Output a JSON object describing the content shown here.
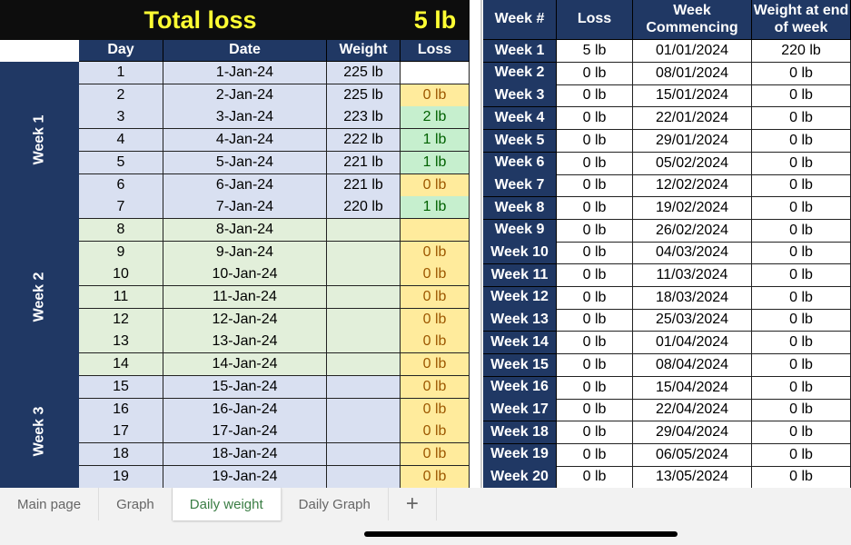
{
  "summary": {
    "title": "Total loss",
    "total": "5 lb"
  },
  "daily": {
    "headers": [
      "Day",
      "Date",
      "Weight",
      "Loss"
    ],
    "weeks": [
      "Week 1",
      "Week 2",
      "Week 3"
    ],
    "rows": [
      {
        "day": "1",
        "date": "1-Jan-24",
        "weight": "225 lb",
        "loss": "",
        "status": "none"
      },
      {
        "day": "2",
        "date": "2-Jan-24",
        "weight": "225 lb",
        "loss": "0 lb",
        "status": "neutral"
      },
      {
        "day": "3",
        "date": "3-Jan-24",
        "weight": "223 lb",
        "loss": "2 lb",
        "status": "good"
      },
      {
        "day": "4",
        "date": "4-Jan-24",
        "weight": "222 lb",
        "loss": "1 lb",
        "status": "good"
      },
      {
        "day": "5",
        "date": "5-Jan-24",
        "weight": "221 lb",
        "loss": "1 lb",
        "status": "good"
      },
      {
        "day": "6",
        "date": "6-Jan-24",
        "weight": "221 lb",
        "loss": "0 lb",
        "status": "neutral"
      },
      {
        "day": "7",
        "date": "7-Jan-24",
        "weight": "220 lb",
        "loss": "1 lb",
        "status": "good"
      },
      {
        "day": "8",
        "date": "8-Jan-24",
        "weight": "",
        "loss": "",
        "status": "neutral"
      },
      {
        "day": "9",
        "date": "9-Jan-24",
        "weight": "",
        "loss": "0 lb",
        "status": "neutral"
      },
      {
        "day": "10",
        "date": "10-Jan-24",
        "weight": "",
        "loss": "0 lb",
        "status": "neutral"
      },
      {
        "day": "11",
        "date": "11-Jan-24",
        "weight": "",
        "loss": "0 lb",
        "status": "neutral"
      },
      {
        "day": "12",
        "date": "12-Jan-24",
        "weight": "",
        "loss": "0 lb",
        "status": "neutral"
      },
      {
        "day": "13",
        "date": "13-Jan-24",
        "weight": "",
        "loss": "0 lb",
        "status": "neutral"
      },
      {
        "day": "14",
        "date": "14-Jan-24",
        "weight": "",
        "loss": "0 lb",
        "status": "neutral"
      },
      {
        "day": "15",
        "date": "15-Jan-24",
        "weight": "",
        "loss": "0 lb",
        "status": "neutral"
      },
      {
        "day": "16",
        "date": "16-Jan-24",
        "weight": "",
        "loss": "0 lb",
        "status": "neutral"
      },
      {
        "day": "17",
        "date": "17-Jan-24",
        "weight": "",
        "loss": "0 lb",
        "status": "neutral"
      },
      {
        "day": "18",
        "date": "18-Jan-24",
        "weight": "",
        "loss": "0 lb",
        "status": "neutral"
      },
      {
        "day": "19",
        "date": "19-Jan-24",
        "weight": "",
        "loss": "0 lb",
        "status": "neutral"
      }
    ]
  },
  "weekly": {
    "headers": [
      "Week #",
      "Loss",
      "Week Commencing",
      "Weight at end of week"
    ],
    "rows": [
      [
        "Week 1",
        "5 lb",
        "01/01/2024",
        "220 lb"
      ],
      [
        "Week 2",
        "0 lb",
        "08/01/2024",
        "0 lb"
      ],
      [
        "Week 3",
        "0 lb",
        "15/01/2024",
        "0 lb"
      ],
      [
        "Week 4",
        "0 lb",
        "22/01/2024",
        "0 lb"
      ],
      [
        "Week 5",
        "0 lb",
        "29/01/2024",
        "0 lb"
      ],
      [
        "Week 6",
        "0 lb",
        "05/02/2024",
        "0 lb"
      ],
      [
        "Week 7",
        "0 lb",
        "12/02/2024",
        "0 lb"
      ],
      [
        "Week 8",
        "0 lb",
        "19/02/2024",
        "0 lb"
      ],
      [
        "Week 9",
        "0 lb",
        "26/02/2024",
        "0 lb"
      ],
      [
        "Week 10",
        "0 lb",
        "04/03/2024",
        "0 lb"
      ],
      [
        "Week 11",
        "0 lb",
        "11/03/2024",
        "0 lb"
      ],
      [
        "Week 12",
        "0 lb",
        "18/03/2024",
        "0 lb"
      ],
      [
        "Week 13",
        "0 lb",
        "25/03/2024",
        "0 lb"
      ],
      [
        "Week 14",
        "0 lb",
        "01/04/2024",
        "0 lb"
      ],
      [
        "Week 15",
        "0 lb",
        "08/04/2024",
        "0 lb"
      ],
      [
        "Week 16",
        "0 lb",
        "15/04/2024",
        "0 lb"
      ],
      [
        "Week 17",
        "0 lb",
        "22/04/2024",
        "0 lb"
      ],
      [
        "Week 18",
        "0 lb",
        "29/04/2024",
        "0 lb"
      ],
      [
        "Week 19",
        "0 lb",
        "06/05/2024",
        "0 lb"
      ],
      [
        "Week 20",
        "0 lb",
        "13/05/2024",
        "0 lb"
      ]
    ]
  },
  "tabs": [
    {
      "label": "Main page"
    },
    {
      "label": "Graph"
    },
    {
      "label": "Daily weight",
      "active": true
    },
    {
      "label": "Daily Graph"
    }
  ],
  "add_tab_icon": "plus-icon",
  "colors": {
    "header": "#203864",
    "title_bg": "#0d0d0d",
    "title_text": "#ffff33",
    "neutral_fill": "#ffeb9c",
    "good_fill": "#c6efce",
    "active_tab": "#3a7d44"
  }
}
